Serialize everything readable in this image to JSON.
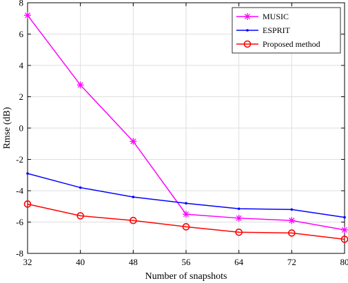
{
  "chart_data": {
    "type": "line",
    "title": "",
    "xlabel": "Number of snapshots",
    "ylabel": "Rmse (dB)",
    "x": [
      32,
      40,
      48,
      56,
      64,
      72,
      80
    ],
    "xlim": [
      32,
      80
    ],
    "ylim": [
      -8,
      8
    ],
    "xticks": [
      "32",
      "40",
      "48",
      "56",
      "64",
      "72",
      "80"
    ],
    "yticks": [
      "-8",
      "-6",
      "-4",
      "-2",
      "0",
      "2",
      "4",
      "6",
      "8"
    ],
    "grid": true,
    "legend_position": "top-right",
    "series": [
      {
        "name": "MUSIC",
        "color": "#ff00ff",
        "marker": "asterisk",
        "values": [
          7.2,
          2.75,
          -0.85,
          -5.5,
          -5.75,
          -5.9,
          -6.5
        ]
      },
      {
        "name": "ESPRIT",
        "color": "#0000ff",
        "marker": "point",
        "values": [
          -2.9,
          -3.8,
          -4.4,
          -4.8,
          -5.15,
          -5.2,
          -5.7
        ]
      },
      {
        "name": "Proposed method",
        "color": "#ff0000",
        "marker": "circle",
        "values": [
          -4.85,
          -5.6,
          -5.9,
          -6.3,
          -6.65,
          -6.7,
          -7.1
        ]
      }
    ]
  }
}
